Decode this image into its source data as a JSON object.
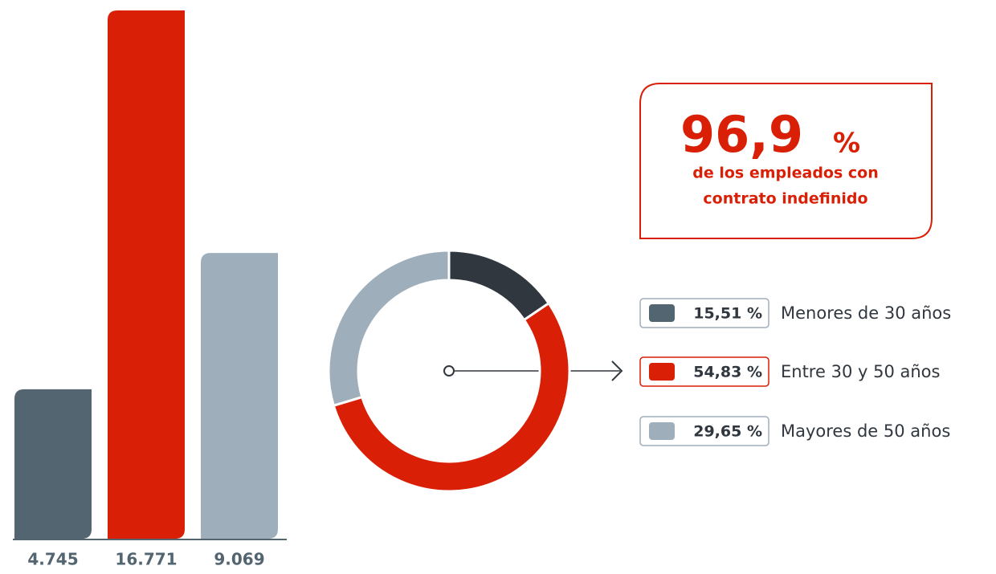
{
  "chart_data": [
    {
      "type": "bar",
      "categories": [
        null,
        null,
        null
      ],
      "values": [
        4745,
        16771,
        9069
      ],
      "value_labels": [
        "4.745",
        "16.771",
        "9.069"
      ],
      "colors": [
        "#536571",
        "#d91f05",
        "#9faebb"
      ]
    },
    {
      "type": "pie",
      "donut": true,
      "categories": [
        "Menores de 30 años",
        "Entre 30 y 50 años",
        "Mayores de 50 años"
      ],
      "values": [
        15.51,
        54.83,
        29.65
      ],
      "value_labels": [
        "15,51 %",
        "54,83 %",
        "29,65 %"
      ],
      "colors": [
        "#30373f",
        "#d91f05",
        "#9faebb"
      ],
      "legend_colors": [
        "#536571",
        "#d91f05",
        "#9faebb"
      ]
    }
  ],
  "callout": {
    "value": "96,9",
    "unit": "%",
    "lines": [
      "de los empleados con",
      "contrato indefinido"
    ]
  }
}
